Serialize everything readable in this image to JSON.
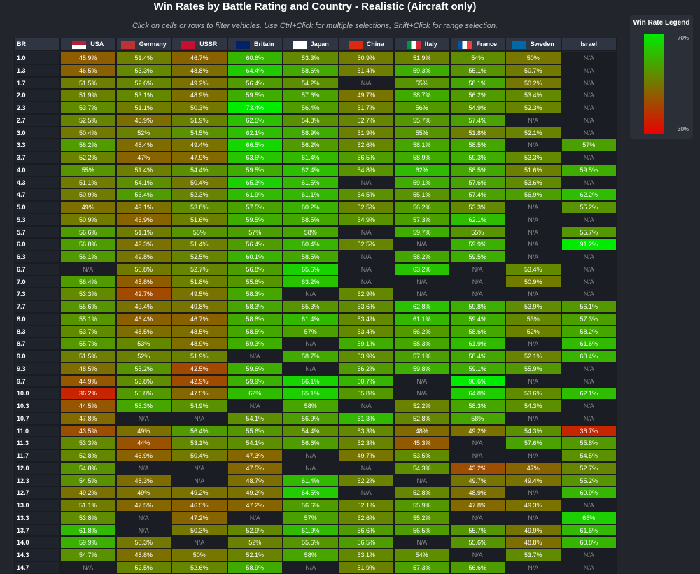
{
  "title": "Win Rates by Battle Rating and Country - Realistic (Aircraft only)",
  "subtitle": "Click on cells or rows to filter vehicles. Use Ctrl+Click for multiple selections, Shift+Click for range selection.",
  "legend": {
    "title": "Win Rate Legend",
    "max_label": "70%",
    "min_label": "30%"
  },
  "table": {
    "columns": [
      "BR",
      "USA",
      "Germany",
      "USSR",
      "Britain",
      "Japan",
      "China",
      "Italy",
      "France",
      "Sweden",
      "Israel"
    ],
    "rows": [
      [
        "1.0",
        "45.9%",
        "51.4%",
        "46.7%",
        "60.6%",
        "53.3%",
        "50.9%",
        "51.9%",
        "54%",
        "50%",
        "N/A"
      ],
      [
        "1.3",
        "46.5%",
        "53.3%",
        "48.8%",
        "64.4%",
        "58.6%",
        "51.4%",
        "59.3%",
        "55.1%",
        "50.7%",
        "N/A"
      ],
      [
        "1.7",
        "51.5%",
        "52.6%",
        "49.2%",
        "56.4%",
        "54.2%",
        "N/A",
        "55%",
        "58.1%",
        "50.2%",
        "N/A"
      ],
      [
        "2.0",
        "51.9%",
        "53.1%",
        "48.9%",
        "59.5%",
        "57.6%",
        "49.7%",
        "58.7%",
        "56.2%",
        "53.4%",
        "N/A"
      ],
      [
        "2.3",
        "53.7%",
        "51.1%",
        "50.3%",
        "73.4%",
        "56.4%",
        "51.7%",
        "56%",
        "54.9%",
        "52.3%",
        "N/A"
      ],
      [
        "2.7",
        "52.5%",
        "48.9%",
        "51.9%",
        "62.5%",
        "54.8%",
        "52.7%",
        "55.7%",
        "57.4%",
        "N/A",
        "N/A"
      ],
      [
        "3.0",
        "50.4%",
        "52%",
        "54.5%",
        "62.1%",
        "58.9%",
        "51.9%",
        "55%",
        "51.8%",
        "52.1%",
        "N/A"
      ],
      [
        "3.3",
        "56.2%",
        "48.4%",
        "49.4%",
        "66.5%",
        "56.2%",
        "52.6%",
        "58.1%",
        "58.5%",
        "N/A",
        "57%"
      ],
      [
        "3.7",
        "52.2%",
        "47%",
        "47.9%",
        "63.6%",
        "61.4%",
        "56.5%",
        "58.9%",
        "59.3%",
        "53.3%",
        "N/A"
      ],
      [
        "4.0",
        "55%",
        "51.4%",
        "54.4%",
        "59.5%",
        "62.4%",
        "54.8%",
        "62%",
        "58.5%",
        "51.6%",
        "59.5%"
      ],
      [
        "4.3",
        "51.1%",
        "54.1%",
        "50.4%",
        "65.3%",
        "61.5%",
        "N/A",
        "59.1%",
        "57.6%",
        "53.6%",
        "N/A"
      ],
      [
        "4.7",
        "50.9%",
        "56.4%",
        "52.3%",
        "61.9%",
        "61.1%",
        "54.5%",
        "55.1%",
        "57.4%",
        "56.9%",
        "62.2%"
      ],
      [
        "5.0",
        "49%",
        "49.1%",
        "53.8%",
        "57.5%",
        "60.2%",
        "52.5%",
        "56.2%",
        "53.3%",
        "N/A",
        "55.2%"
      ],
      [
        "5.3",
        "50.9%",
        "46.9%",
        "51.6%",
        "59.5%",
        "58.5%",
        "54.9%",
        "57.3%",
        "62.1%",
        "N/A",
        "N/A"
      ],
      [
        "5.7",
        "56.6%",
        "51.1%",
        "55%",
        "57%",
        "58%",
        "N/A",
        "59.7%",
        "55%",
        "N/A",
        "55.7%"
      ],
      [
        "6.0",
        "56.8%",
        "49.3%",
        "51.4%",
        "56.4%",
        "60.4%",
        "52.5%",
        "N/A",
        "59.9%",
        "N/A",
        "91.2%"
      ],
      [
        "6.3",
        "56.1%",
        "49.8%",
        "52.5%",
        "60.1%",
        "58.5%",
        "N/A",
        "58.2%",
        "59.5%",
        "N/A",
        "N/A"
      ],
      [
        "6.7",
        "N/A",
        "50.8%",
        "52.7%",
        "56.8%",
        "65.6%",
        "N/A",
        "63.2%",
        "N/A",
        "53.4%",
        "N/A"
      ],
      [
        "7.0",
        "56.4%",
        "45.8%",
        "51.8%",
        "55.6%",
        "63.2%",
        "N/A",
        "N/A",
        "N/A",
        "50.9%",
        "N/A"
      ],
      [
        "7.3",
        "53.3%",
        "42.7%",
        "49.5%",
        "58.3%",
        "N/A",
        "52.9%",
        "N/A",
        "N/A",
        "N/A",
        "N/A"
      ],
      [
        "7.7",
        "55.6%",
        "49.4%",
        "49.8%",
        "58.3%",
        "55.3%",
        "53.6%",
        "62.8%",
        "59.8%",
        "53.9%",
        "56.1%"
      ],
      [
        "8.0",
        "55.1%",
        "46.4%",
        "46.7%",
        "58.8%",
        "61.4%",
        "53.4%",
        "61.1%",
        "59.4%",
        "53%",
        "57.3%"
      ],
      [
        "8.3",
        "53.7%",
        "48.5%",
        "48.5%",
        "58.5%",
        "57%",
        "53.4%",
        "56.2%",
        "58.6%",
        "52%",
        "58.2%"
      ],
      [
        "8.7",
        "55.7%",
        "53%",
        "48.9%",
        "59.3%",
        "N/A",
        "59.1%",
        "58.3%",
        "61.9%",
        "N/A",
        "61.6%"
      ],
      [
        "9.0",
        "51.5%",
        "52%",
        "51.9%",
        "N/A",
        "58.7%",
        "53.9%",
        "57.1%",
        "58.4%",
        "52.1%",
        "60.4%"
      ],
      [
        "9.3",
        "48.5%",
        "55.2%",
        "42.5%",
        "59.6%",
        "N/A",
        "56.2%",
        "59.8%",
        "59.1%",
        "55.9%",
        "N/A"
      ],
      [
        "9.7",
        "44.9%",
        "53.8%",
        "42.9%",
        "59.9%",
        "66.1%",
        "60.7%",
        "N/A",
        "90.6%",
        "N/A",
        "N/A"
      ],
      [
        "10.0",
        "36.2%",
        "55.8%",
        "47.5%",
        "62%",
        "65.1%",
        "55.8%",
        "N/A",
        "64.8%",
        "53.6%",
        "62.1%"
      ],
      [
        "10.3",
        "44.5%",
        "58.3%",
        "54.9%",
        "N/A",
        "58%",
        "N/A",
        "52.2%",
        "58.3%",
        "54.3%",
        "N/A"
      ],
      [
        "10.7",
        "47.8%",
        "N/A",
        "N/A",
        "54.1%",
        "56.9%",
        "61.3%",
        "52.8%",
        "58%",
        "N/A",
        "N/A"
      ],
      [
        "11.0",
        "43.5%",
        "49%",
        "56.4%",
        "55.6%",
        "54.4%",
        "53.3%",
        "48%",
        "49.2%",
        "54.3%",
        "36.7%"
      ],
      [
        "11.3",
        "53.3%",
        "44%",
        "53.1%",
        "54.1%",
        "56.6%",
        "52.3%",
        "45.3%",
        "N/A",
        "57.6%",
        "55.8%"
      ],
      [
        "11.7",
        "52.8%",
        "46.9%",
        "50.4%",
        "47.3%",
        "N/A",
        "49.7%",
        "53.5%",
        "N/A",
        "N/A",
        "54.5%"
      ],
      [
        "12.0",
        "54.8%",
        "N/A",
        "N/A",
        "47.5%",
        "N/A",
        "N/A",
        "54.3%",
        "43.2%",
        "47%",
        "52.7%"
      ],
      [
        "12.3",
        "54.5%",
        "48.3%",
        "N/A",
        "48.7%",
        "61.4%",
        "52.2%",
        "N/A",
        "49.7%",
        "49.4%",
        "55.2%"
      ],
      [
        "12.7",
        "49.2%",
        "49%",
        "49.2%",
        "49.2%",
        "64.5%",
        "N/A",
        "52.8%",
        "48.9%",
        "N/A",
        "60.9%"
      ],
      [
        "13.0",
        "51.1%",
        "47.5%",
        "46.5%",
        "47.2%",
        "56.6%",
        "52.1%",
        "55.9%",
        "47.8%",
        "49.3%",
        "N/A"
      ],
      [
        "13.3",
        "53.8%",
        "N/A",
        "47.2%",
        "N/A",
        "57%",
        "52.6%",
        "55.2%",
        "N/A",
        "N/A",
        "65%"
      ],
      [
        "13.7",
        "61.8%",
        "N/A",
        "50.3%",
        "52.9%",
        "61.9%",
        "56.6%",
        "56.5%",
        "55.7%",
        "49.9%",
        "61.6%"
      ],
      [
        "14.0",
        "59.9%",
        "50.3%",
        "N/A",
        "52%",
        "55.6%",
        "56.5%",
        "N/A",
        "55.6%",
        "48.8%",
        "60.8%"
      ],
      [
        "14.3",
        "54.7%",
        "48.8%",
        "50%",
        "52.1%",
        "58%",
        "53.1%",
        "54%",
        "N/A",
        "53.7%",
        "N/A"
      ],
      [
        "14.7",
        "N/A",
        "52.5%",
        "52.6%",
        "58.9%",
        "N/A",
        "51.9%",
        "57.3%",
        "56.6%",
        "N/A",
        "N/A"
      ]
    ]
  }
}
